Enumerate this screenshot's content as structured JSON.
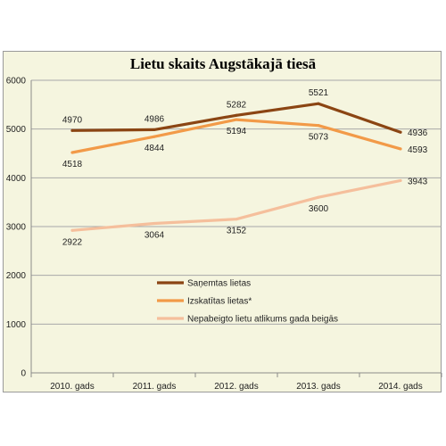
{
  "chart_data": {
    "type": "line",
    "title": "Lietu skaits Augstākajā tiesā",
    "categories": [
      "2010. gads",
      "2011. gads",
      "2012. gads",
      "2013. gads",
      "2014. gads"
    ],
    "ylim": [
      0,
      6000
    ],
    "yticks": [
      0,
      1000,
      2000,
      3000,
      4000,
      5000,
      6000
    ],
    "grid": true,
    "legend_position": "center",
    "series": [
      {
        "name": "Saņemtas lietas",
        "values": [
          4970,
          4986,
          5282,
          5521,
          4936
        ],
        "color": "#8b4513"
      },
      {
        "name": "Izskatītas lietas*",
        "values": [
          4518,
          4844,
          5194,
          5073,
          4593
        ],
        "color": "#f29a48"
      },
      {
        "name": "Nepabeigto lietu atlikums gada beigās",
        "values": [
          2922,
          3064,
          3152,
          3600,
          3943
        ],
        "color": "#f5bf9c"
      }
    ]
  }
}
